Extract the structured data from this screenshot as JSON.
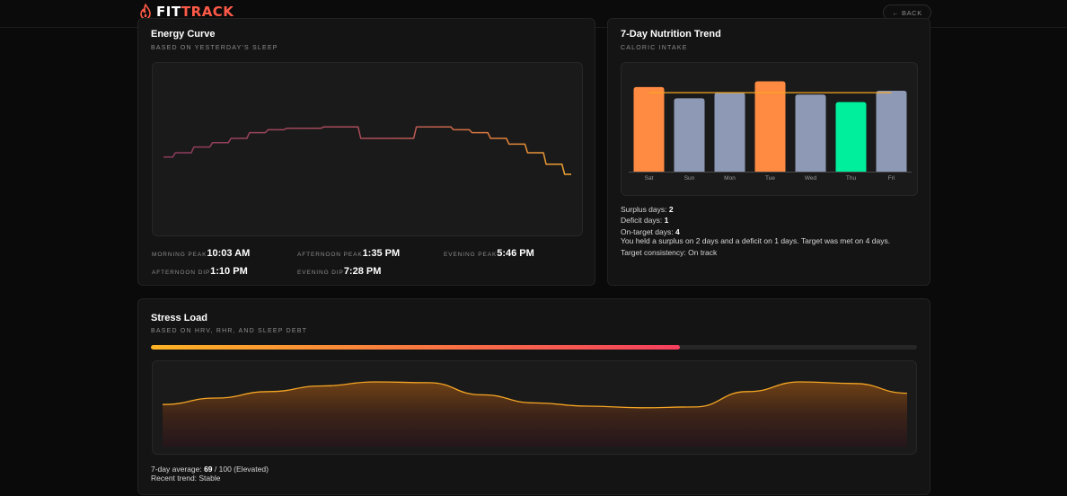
{
  "header": {
    "brand_primary": "FIT",
    "brand_accent": "TRACK",
    "logo_icon": "flame-icon",
    "back_label": "← BACK"
  },
  "colors": {
    "brand_accent": "#ff5a48",
    "bar_surplus": "#ff8a42",
    "bar_normal": "#8e9ab5",
    "bar_deficit": "#00ef9c",
    "target_line": "#f5a623",
    "energy_start": "#8c3a5c",
    "energy_end": "#f3a732",
    "stress_line": "#f5a524"
  },
  "energy": {
    "title": "Energy Curve",
    "subtitle": "BASED ON YESTERDAY'S SLEEP",
    "stats": [
      {
        "label": "MORNING PEAK",
        "value": "10:03 AM"
      },
      {
        "label": "AFTERNOON PEAK",
        "value": "1:35 PM"
      },
      {
        "label": "EVENING PEAK",
        "value": "5:46 PM"
      },
      {
        "label": "AFTERNOON DIP",
        "value": "1:10 PM"
      },
      {
        "label": "EVENING DIP",
        "value": "7:28 PM"
      }
    ]
  },
  "nutrition": {
    "title": "7-Day Nutrition Trend",
    "subtitle": "CALORIC INTAKE",
    "summary": {
      "surplus_label": "Surplus days: ",
      "surplus_value": "2",
      "deficit_label": "Deficit days: ",
      "deficit_value": "1",
      "ontarget_label": "On-target days: ",
      "ontarget_value": "4",
      "sentence": "You held a surplus on 2 days and a deficit on 1 days. Target was met on 4 days.",
      "consistency": "Target consistency: On track"
    }
  },
  "stress": {
    "title": "Stress Load",
    "subtitle": "BASED ON HRV, RHR, AND SLEEP DEBT",
    "score": 69,
    "max": 100,
    "avg_label": "7-day average: ",
    "avg_value": "69",
    "avg_suffix": " / 100 (Elevated)",
    "trend": "Recent trend: Stable"
  },
  "chart_data": [
    {
      "type": "bar",
      "categories": [
        "Sat",
        "Sun",
        "Mon",
        "Tue",
        "Wed",
        "Thu",
        "Fri"
      ],
      "values": [
        2250,
        1950,
        2100,
        2400,
        2050,
        1850,
        2150
      ],
      "status": [
        "surplus",
        "normal",
        "normal",
        "surplus",
        "normal",
        "deficit",
        "normal"
      ],
      "target": 2100,
      "ylim": [
        0,
        2700
      ],
      "grid": false
    },
    {
      "type": "line",
      "x": [
        0,
        1,
        2,
        3,
        4,
        5,
        6,
        7,
        8,
        9,
        10,
        11,
        12,
        13,
        14,
        15,
        16,
        17,
        18,
        19,
        20,
        21,
        22
      ],
      "y": [
        47,
        50,
        54,
        57,
        60,
        64,
        66,
        67,
        67,
        68,
        68,
        60,
        60,
        60,
        68,
        68,
        66,
        64,
        60,
        56,
        50,
        42,
        35
      ],
      "grid": false
    },
    {
      "type": "area",
      "x": [
        0,
        1,
        2,
        3,
        4,
        5,
        6,
        7,
        8,
        9,
        10,
        11,
        12,
        13,
        14
      ],
      "y": [
        52,
        60,
        68,
        75,
        80,
        79,
        64,
        54,
        50,
        48,
        49,
        68,
        80,
        78,
        66
      ],
      "ylim": [
        0,
        100
      ],
      "grid": false
    }
  ]
}
